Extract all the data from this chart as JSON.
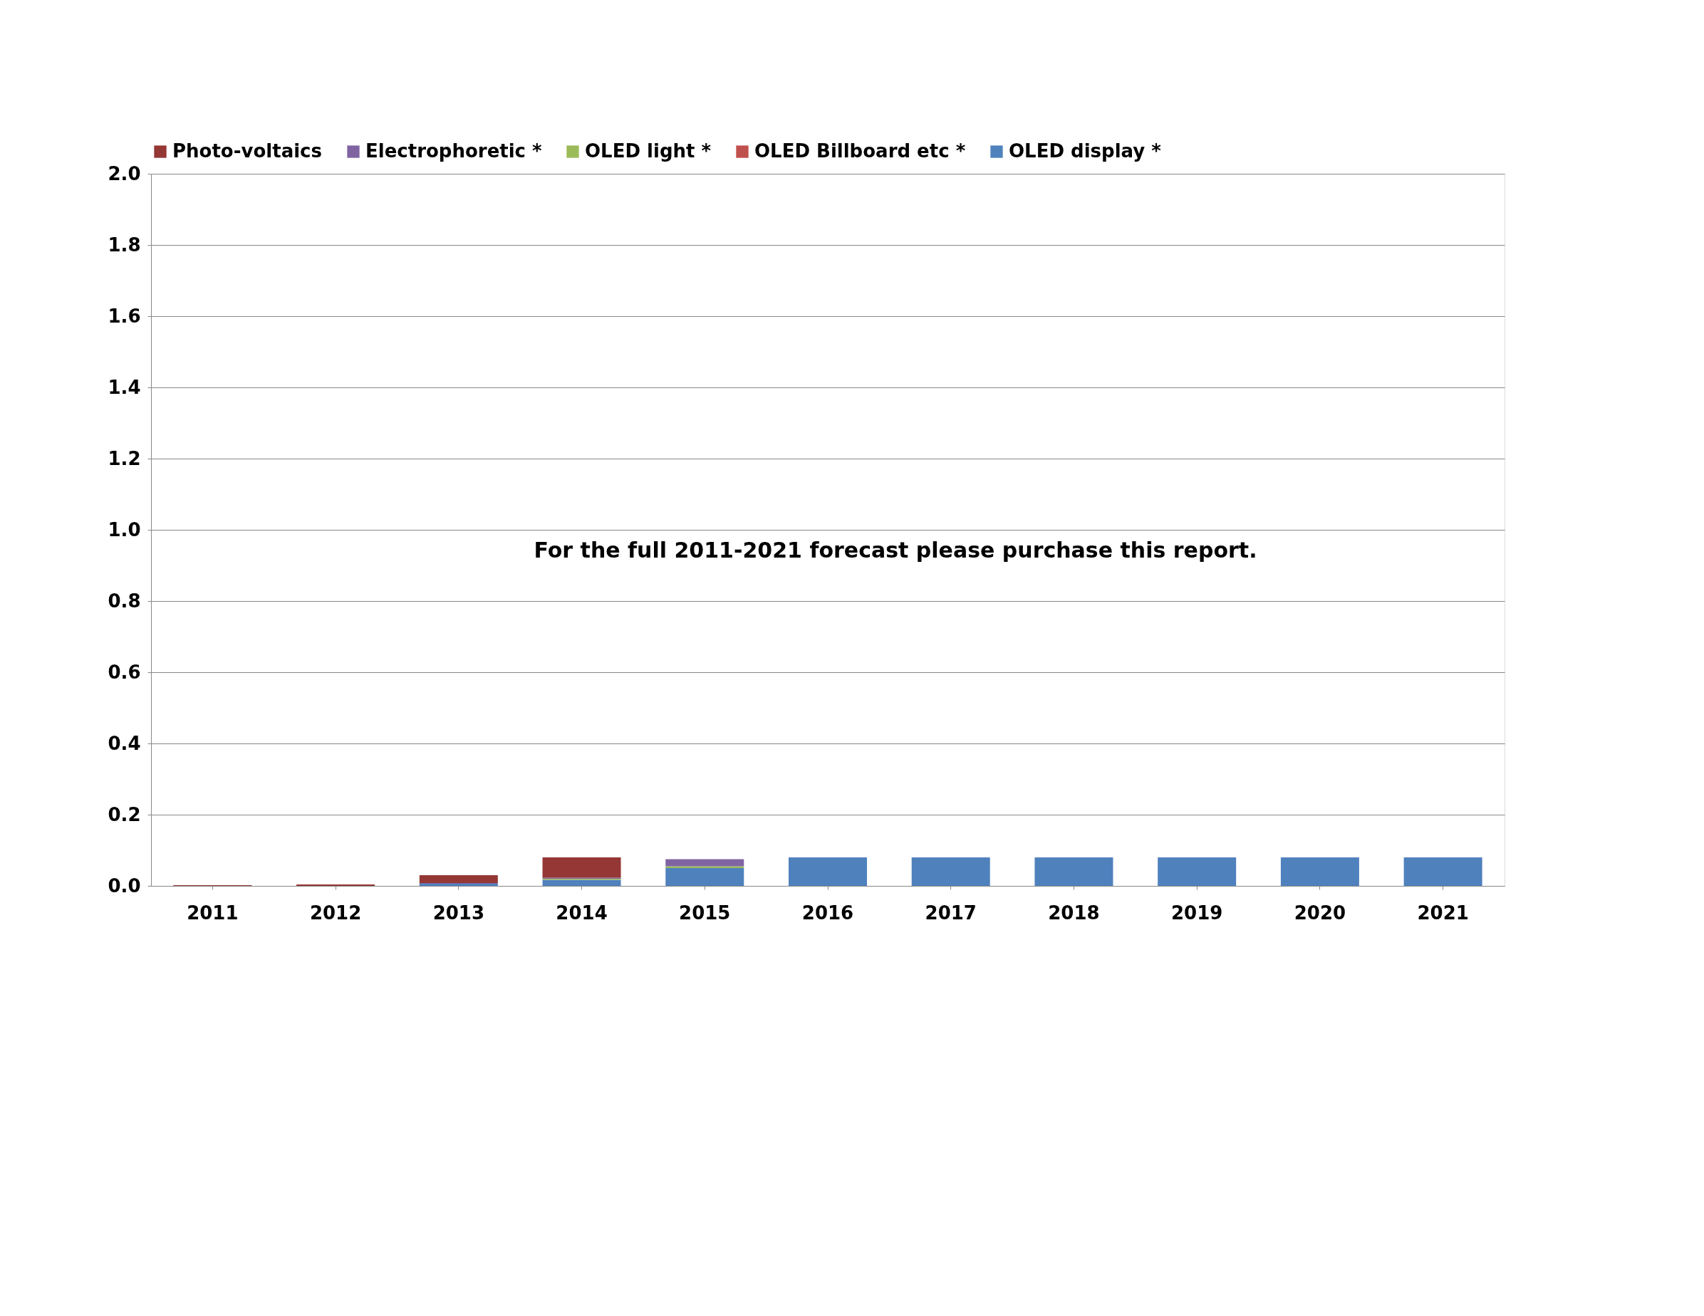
{
  "chart_data": {
    "type": "bar",
    "stacked": true,
    "categories": [
      "2011",
      "2012",
      "2013",
      "2014",
      "2015",
      "2016",
      "2017",
      "2018",
      "2019",
      "2020",
      "2021"
    ],
    "series": [
      {
        "name": "OLED display *",
        "color": "#4f81bd",
        "values": [
          0,
          null,
          0.006,
          0.017,
          0.05,
          0.08,
          0.08,
          0.08,
          0.08,
          0.08,
          0.08
        ]
      },
      {
        "name": "OLED Billboard etc *",
        "color": "#c0504d",
        "values": [
          0,
          0,
          0,
          0,
          0,
          0,
          0,
          0,
          0,
          0,
          0
        ]
      },
      {
        "name": "OLED light *",
        "color": "#9bbb59",
        "values": [
          0,
          0,
          0,
          0.003,
          0.005,
          0,
          0,
          0,
          0,
          0,
          0
        ]
      },
      {
        "name": "Electrophoretic *",
        "color": "#8064a2",
        "values": [
          0,
          0,
          0.002,
          0.003,
          0.02,
          0,
          0,
          0,
          0,
          0,
          0
        ]
      },
      {
        "name": "Photo-voltaics",
        "color": "#953735",
        "values": [
          0.002,
          0.004,
          0.022,
          0.057,
          0,
          0,
          0,
          0,
          0,
          0,
          0
        ]
      }
    ],
    "ylim": [
      0,
      2
    ],
    "yticks": [
      {
        "value": 0,
        "label": "0.0"
      },
      {
        "value": 0.2,
        "label": "0.2"
      },
      {
        "value": 0.4,
        "label": "0.4"
      },
      {
        "value": 0.6,
        "label": "0.6"
      },
      {
        "value": 0.8,
        "label": "0.8"
      },
      {
        "value": 1,
        "label": "1.0"
      },
      {
        "value": 1.2,
        "label": "1.2"
      },
      {
        "value": 1.4,
        "label": "1.4"
      },
      {
        "value": 1.6,
        "label": "1.6"
      },
      {
        "value": 1.8,
        "label": "1.8"
      },
      {
        "value": 2,
        "label": "2.0"
      }
    ],
    "grid": "y",
    "legend": "top",
    "annotations": [
      "For the full 2011-2021 forecast please purchase this report."
    ]
  }
}
